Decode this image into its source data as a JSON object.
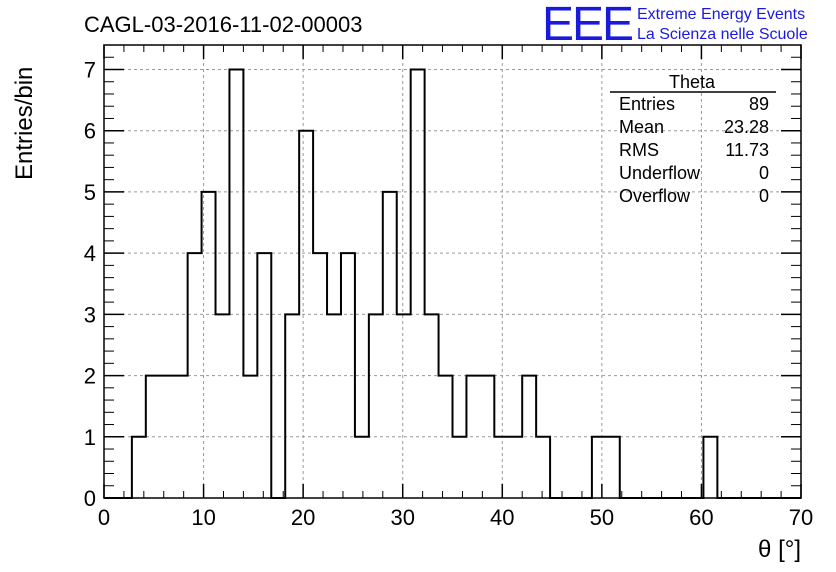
{
  "header": {
    "title": "CAGL-03-2016-11-02-00003",
    "logo_mark": "EEE",
    "logo_line1": "Extreme Energy Events",
    "logo_line2": "La Scienza nelle Scuole",
    "logo_color": "#1a1adf"
  },
  "stats": {
    "name": "Theta",
    "rows": [
      {
        "label": "Entries",
        "value": "89"
      },
      {
        "label": "Mean",
        "value": "23.28"
      },
      {
        "label": "RMS",
        "value": "11.73"
      },
      {
        "label": "Underflow",
        "value": "0"
      },
      {
        "label": "Overflow",
        "value": "0"
      }
    ]
  },
  "chart_data": {
    "type": "bar",
    "histogram": true,
    "title": "CAGL-03-2016-11-02-00003",
    "xlabel": "θ [°]",
    "ylabel": "Entries/bin",
    "xlim": [
      0,
      70
    ],
    "ylim": [
      0,
      7.4
    ],
    "grid": true,
    "bin_width": 1.4,
    "x_ticks": [
      "0",
      "10",
      "20",
      "30",
      "40",
      "50",
      "60",
      "70"
    ],
    "y_ticks": [
      "0",
      "1",
      "2",
      "3",
      "4",
      "5",
      "6",
      "7"
    ],
    "bin_edges": [
      0,
      1.4,
      2.8,
      4.2,
      5.6,
      7.0,
      8.4,
      9.8,
      11.2,
      12.6,
      14.0,
      15.4,
      16.8,
      18.2,
      19.6,
      21.0,
      22.4,
      23.8,
      25.2,
      26.6,
      28.0,
      29.4,
      30.8,
      32.2,
      33.6,
      35.0,
      36.4,
      37.8,
      39.2,
      40.6,
      42.0,
      43.4,
      44.8,
      46.2,
      47.6,
      49.0,
      50.4,
      51.8,
      53.2,
      54.6,
      56.0,
      57.4,
      58.8,
      60.2,
      61.6,
      63.0,
      64.4,
      65.8,
      67.2,
      68.6,
      70.0
    ],
    "values": [
      0,
      0,
      1,
      2,
      2,
      2,
      4,
      5,
      3,
      7,
      2,
      4,
      0,
      3,
      6,
      4,
      3,
      4,
      1,
      3,
      5,
      3,
      7,
      3,
      2,
      1,
      2,
      2,
      1,
      1,
      2,
      1,
      0,
      0,
      0,
      1,
      1,
      0,
      0,
      0,
      0,
      0,
      0,
      1,
      0,
      0,
      0,
      0,
      0,
      0
    ]
  }
}
